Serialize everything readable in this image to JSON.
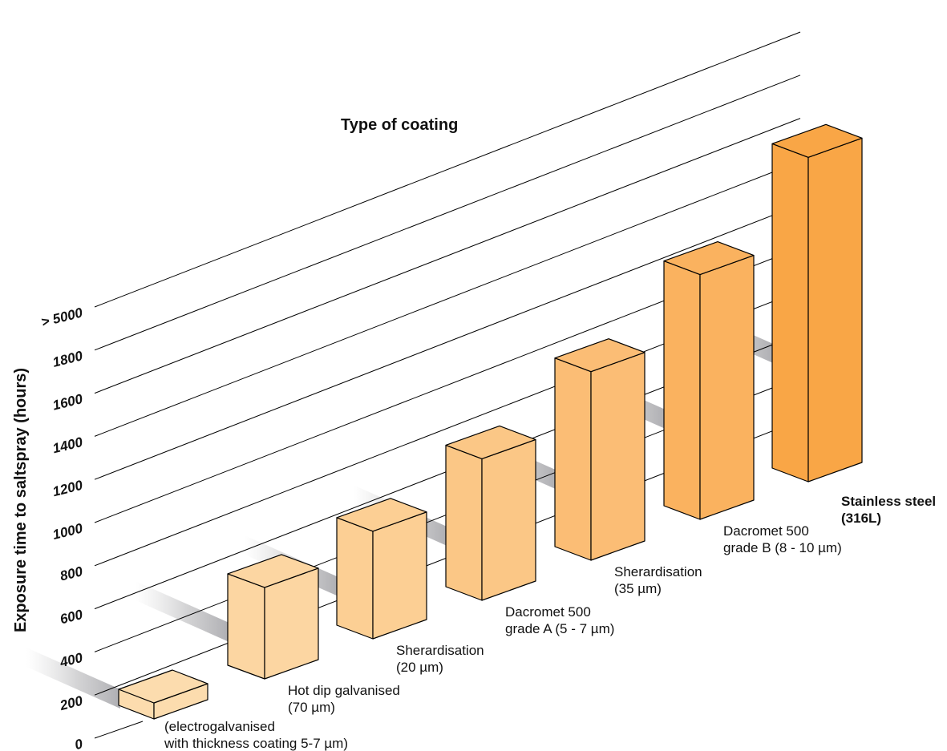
{
  "chart_data": {
    "type": "bar",
    "title": "Type of coating",
    "ylabel": "Exposure time to saltspray (hours)",
    "ticks": [
      "0",
      "200",
      "400",
      "600",
      "800",
      "1000",
      "1200",
      "1400",
      "1600",
      "1800",
      "> 5000"
    ],
    "categories": [
      {
        "lines": [
          "(electrogalvanised",
          "with thickness coating 5-7 µm)"
        ],
        "bold": false
      },
      {
        "lines": [
          "Hot dip galvanised",
          "(70 µm)"
        ],
        "bold": false
      },
      {
        "lines": [
          "Sherardisation",
          "(20 µm)"
        ],
        "bold": false
      },
      {
        "lines": [
          "Dacromet 500",
          "grade A (5 - 7 µm)"
        ],
        "bold": false
      },
      {
        "lines": [
          "Sherardisation",
          "(35 µm)"
        ],
        "bold": false
      },
      {
        "lines": [
          "Dacromet 500",
          "grade B (8 - 10 µm)"
        ],
        "bold": false
      },
      {
        "lines": [
          "Stainless steel",
          "(316L)"
        ],
        "bold": true
      }
    ],
    "values": [
      50,
      400,
      500,
      700,
      1000,
      1400,
      5000
    ],
    "ylim": [
      0,
      5000
    ],
    "grid": true,
    "colors": [
      "#fcdcae",
      "#fcd6a2",
      "#fccf94",
      "#fbc786",
      "#fbbd75",
      "#fab25f",
      "#f9a646"
    ]
  }
}
